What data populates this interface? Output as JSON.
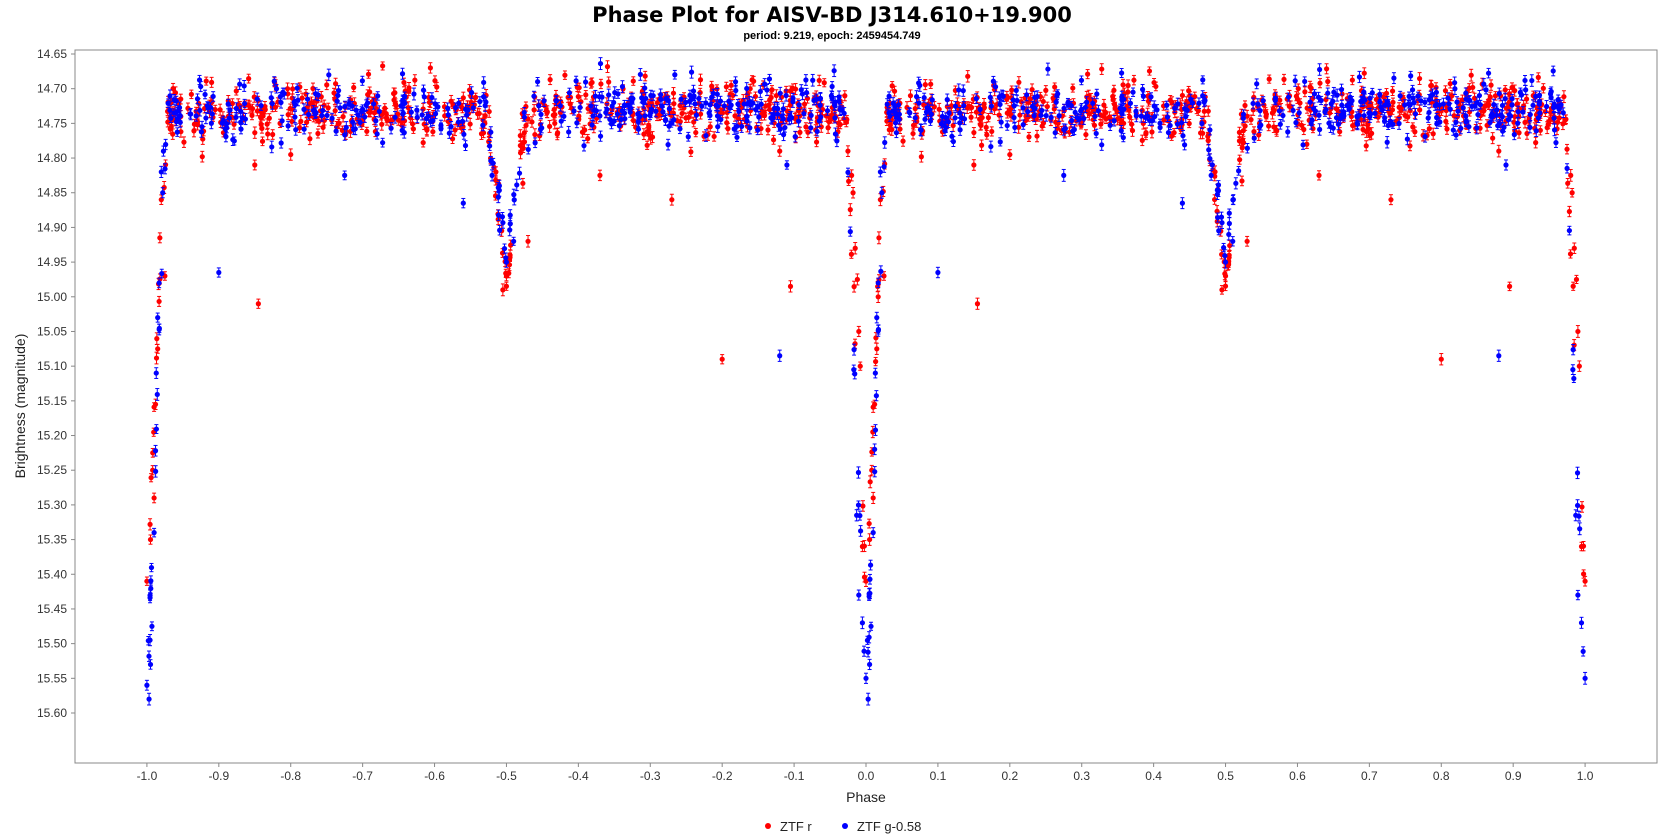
{
  "chart_data": {
    "type": "scatter",
    "title": "Phase Plot for AISV-BD J314.610+19.900",
    "subtitle": "period: 9.219, epoch: 2459454.749",
    "xlabel": "Phase",
    "ylabel": "Brightness (magnitude)",
    "xlim": [
      -1.1,
      1.1
    ],
    "ylim": [
      15.6,
      14.65
    ],
    "y_inverted": true,
    "grid": false,
    "legend_position": "bottom-center",
    "x_ticks": [
      "-1.0",
      "-0.9",
      "-0.8",
      "-0.7",
      "-0.6",
      "-0.5",
      "-0.4",
      "-0.3",
      "-0.2",
      "-0.1",
      "0.0",
      "0.1",
      "0.2",
      "0.3",
      "0.4",
      "0.5",
      "0.6",
      "0.7",
      "0.8",
      "0.9",
      "1.0"
    ],
    "y_ticks": [
      "14.65",
      "14.70",
      "14.75",
      "14.80",
      "14.85",
      "14.90",
      "14.95",
      "15.00",
      "15.05",
      "15.10",
      "15.15",
      "15.20",
      "15.25",
      "15.30",
      "15.35",
      "15.40",
      "15.45",
      "15.50",
      "15.55",
      "15.60"
    ],
    "light_curve_model": {
      "baseline_mag": 14.73,
      "scatter_mag": 0.02,
      "primary_eclipse": {
        "phase": 0.0,
        "depth_r": 0.68,
        "depth_g": 0.85,
        "halfwidth": 0.028
      },
      "secondary_eclipse": {
        "phase": 0.5,
        "depth_r": 0.26,
        "depth_g": 0.22,
        "halfwidth": 0.028
      }
    },
    "series": [
      {
        "name": "ZTF r",
        "color": "#ff0000",
        "notable_points": [
          {
            "x": -1.0,
            "y": 15.41
          },
          {
            "x": -0.995,
            "y": 15.35
          },
          {
            "x": -0.992,
            "y": 15.25
          },
          {
            "x": -0.99,
            "y": 15.29
          },
          {
            "x": -0.988,
            "y": 15.155
          },
          {
            "x": -0.985,
            "y": 15.075
          },
          {
            "x": -0.982,
            "y": 14.915
          },
          {
            "x": -0.98,
            "y": 14.86
          },
          {
            "x": -0.975,
            "y": 14.97
          },
          {
            "x": -0.85,
            "y": 14.81
          },
          {
            "x": -0.845,
            "y": 15.01
          },
          {
            "x": -0.8,
            "y": 14.795
          },
          {
            "x": -0.505,
            "y": 14.99
          },
          {
            "x": -0.5,
            "y": 14.97
          },
          {
            "x": -0.495,
            "y": 14.94
          },
          {
            "x": -0.47,
            "y": 14.92
          },
          {
            "x": -0.37,
            "y": 14.825
          },
          {
            "x": -0.27,
            "y": 14.86
          },
          {
            "x": -0.2,
            "y": 15.09
          },
          {
            "x": -0.105,
            "y": 14.985
          },
          {
            "x": -0.12,
            "y": 14.79
          },
          {
            "x": -0.02,
            "y": 14.825
          },
          {
            "x": -0.018,
            "y": 14.85
          },
          {
            "x": -0.015,
            "y": 14.93
          },
          {
            "x": -0.012,
            "y": 14.975
          },
          {
            "x": -0.01,
            "y": 15.05
          },
          {
            "x": -0.008,
            "y": 15.1
          },
          {
            "x": -0.005,
            "y": 15.36
          },
          {
            "x": 0.0,
            "y": 15.41
          },
          {
            "x": 0.005,
            "y": 15.35
          },
          {
            "x": 0.008,
            "y": 15.25
          },
          {
            "x": 0.01,
            "y": 15.29
          },
          {
            "x": 0.012,
            "y": 15.155
          },
          {
            "x": 0.015,
            "y": 15.075
          },
          {
            "x": 0.018,
            "y": 14.915
          },
          {
            "x": 0.02,
            "y": 14.86
          },
          {
            "x": 0.025,
            "y": 14.97
          },
          {
            "x": 0.15,
            "y": 14.81
          },
          {
            "x": 0.155,
            "y": 15.01
          },
          {
            "x": 0.2,
            "y": 14.795
          },
          {
            "x": 0.495,
            "y": 14.99
          },
          {
            "x": 0.5,
            "y": 14.97
          },
          {
            "x": 0.505,
            "y": 14.94
          },
          {
            "x": 0.53,
            "y": 14.92
          },
          {
            "x": 0.63,
            "y": 14.825
          },
          {
            "x": 0.73,
            "y": 14.86
          },
          {
            "x": 0.8,
            "y": 15.09
          },
          {
            "x": 0.895,
            "y": 14.985
          },
          {
            "x": 0.88,
            "y": 14.79
          },
          {
            "x": 0.98,
            "y": 14.825
          },
          {
            "x": 0.982,
            "y": 14.85
          },
          {
            "x": 0.985,
            "y": 14.93
          },
          {
            "x": 0.988,
            "y": 14.975
          },
          {
            "x": 0.99,
            "y": 15.05
          },
          {
            "x": 0.992,
            "y": 15.1
          },
          {
            "x": 0.995,
            "y": 15.36
          },
          {
            "x": 1.0,
            "y": 15.41
          }
        ]
      },
      {
        "name": "ZTF g-0.58",
        "color": "#0000ff",
        "notable_points": [
          {
            "x": -1.0,
            "y": 15.56
          },
          {
            "x": -0.997,
            "y": 15.58
          },
          {
            "x": -0.995,
            "y": 15.53
          },
          {
            "x": -0.993,
            "y": 15.475
          },
          {
            "x": -0.99,
            "y": 15.34
          },
          {
            "x": -0.987,
            "y": 15.11
          },
          {
            "x": -0.985,
            "y": 15.03
          },
          {
            "x": -0.983,
            "y": 14.98
          },
          {
            "x": -0.98,
            "y": 14.82
          },
          {
            "x": -0.978,
            "y": 14.85
          },
          {
            "x": -0.977,
            "y": 14.79
          },
          {
            "x": -0.9,
            "y": 14.965
          },
          {
            "x": -0.725,
            "y": 14.825
          },
          {
            "x": -0.56,
            "y": 14.865
          },
          {
            "x": -0.52,
            "y": 14.825
          },
          {
            "x": -0.5,
            "y": 14.95
          },
          {
            "x": -0.49,
            "y": 14.92
          },
          {
            "x": -0.12,
            "y": 15.085
          },
          {
            "x": -0.11,
            "y": 14.81
          },
          {
            "x": -0.017,
            "y": 15.105
          },
          {
            "x": -0.013,
            "y": 15.315
          },
          {
            "x": -0.01,
            "y": 15.43
          },
          {
            "x": -0.005,
            "y": 15.47
          },
          {
            "x": 0.0,
            "y": 15.55
          },
          {
            "x": 0.003,
            "y": 15.58
          },
          {
            "x": 0.005,
            "y": 15.53
          },
          {
            "x": 0.007,
            "y": 15.475
          },
          {
            "x": 0.01,
            "y": 15.34
          },
          {
            "x": 0.013,
            "y": 15.11
          },
          {
            "x": 0.015,
            "y": 15.03
          },
          {
            "x": 0.017,
            "y": 14.98
          },
          {
            "x": 0.02,
            "y": 14.82
          },
          {
            "x": 0.022,
            "y": 14.85
          },
          {
            "x": 0.1,
            "y": 14.965
          },
          {
            "x": 0.275,
            "y": 14.825
          },
          {
            "x": 0.44,
            "y": 14.865
          },
          {
            "x": 0.48,
            "y": 14.825
          },
          {
            "x": 0.5,
            "y": 14.95
          },
          {
            "x": 0.51,
            "y": 14.92
          },
          {
            "x": 0.88,
            "y": 15.085
          },
          {
            "x": 0.89,
            "y": 14.81
          },
          {
            "x": 0.983,
            "y": 15.105
          },
          {
            "x": 0.987,
            "y": 15.315
          },
          {
            "x": 0.99,
            "y": 15.43
          },
          {
            "x": 0.995,
            "y": 15.47
          },
          {
            "x": 1.0,
            "y": 15.55
          }
        ]
      }
    ]
  }
}
